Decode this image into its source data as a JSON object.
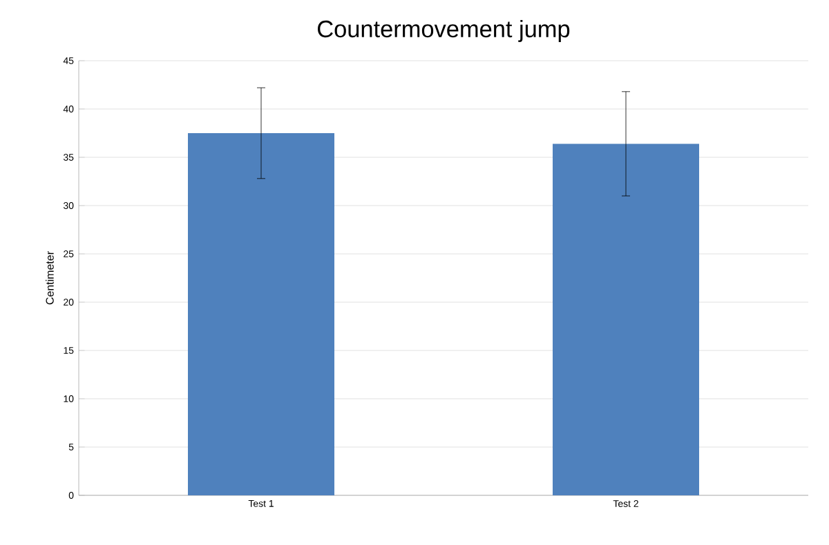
{
  "chart_data": {
    "type": "bar",
    "title": "Countermovement jump",
    "ylabel": "Centimeter",
    "categories": [
      "Test 1",
      "Test 2"
    ],
    "values": [
      37.5,
      36.4
    ],
    "errors": [
      4.7,
      5.4
    ],
    "color": "#4f81bd",
    "ylim": [
      0,
      45
    ],
    "yticks": [
      0,
      5,
      10,
      15,
      20,
      25,
      30,
      35,
      40,
      45
    ],
    "grid": "y"
  }
}
